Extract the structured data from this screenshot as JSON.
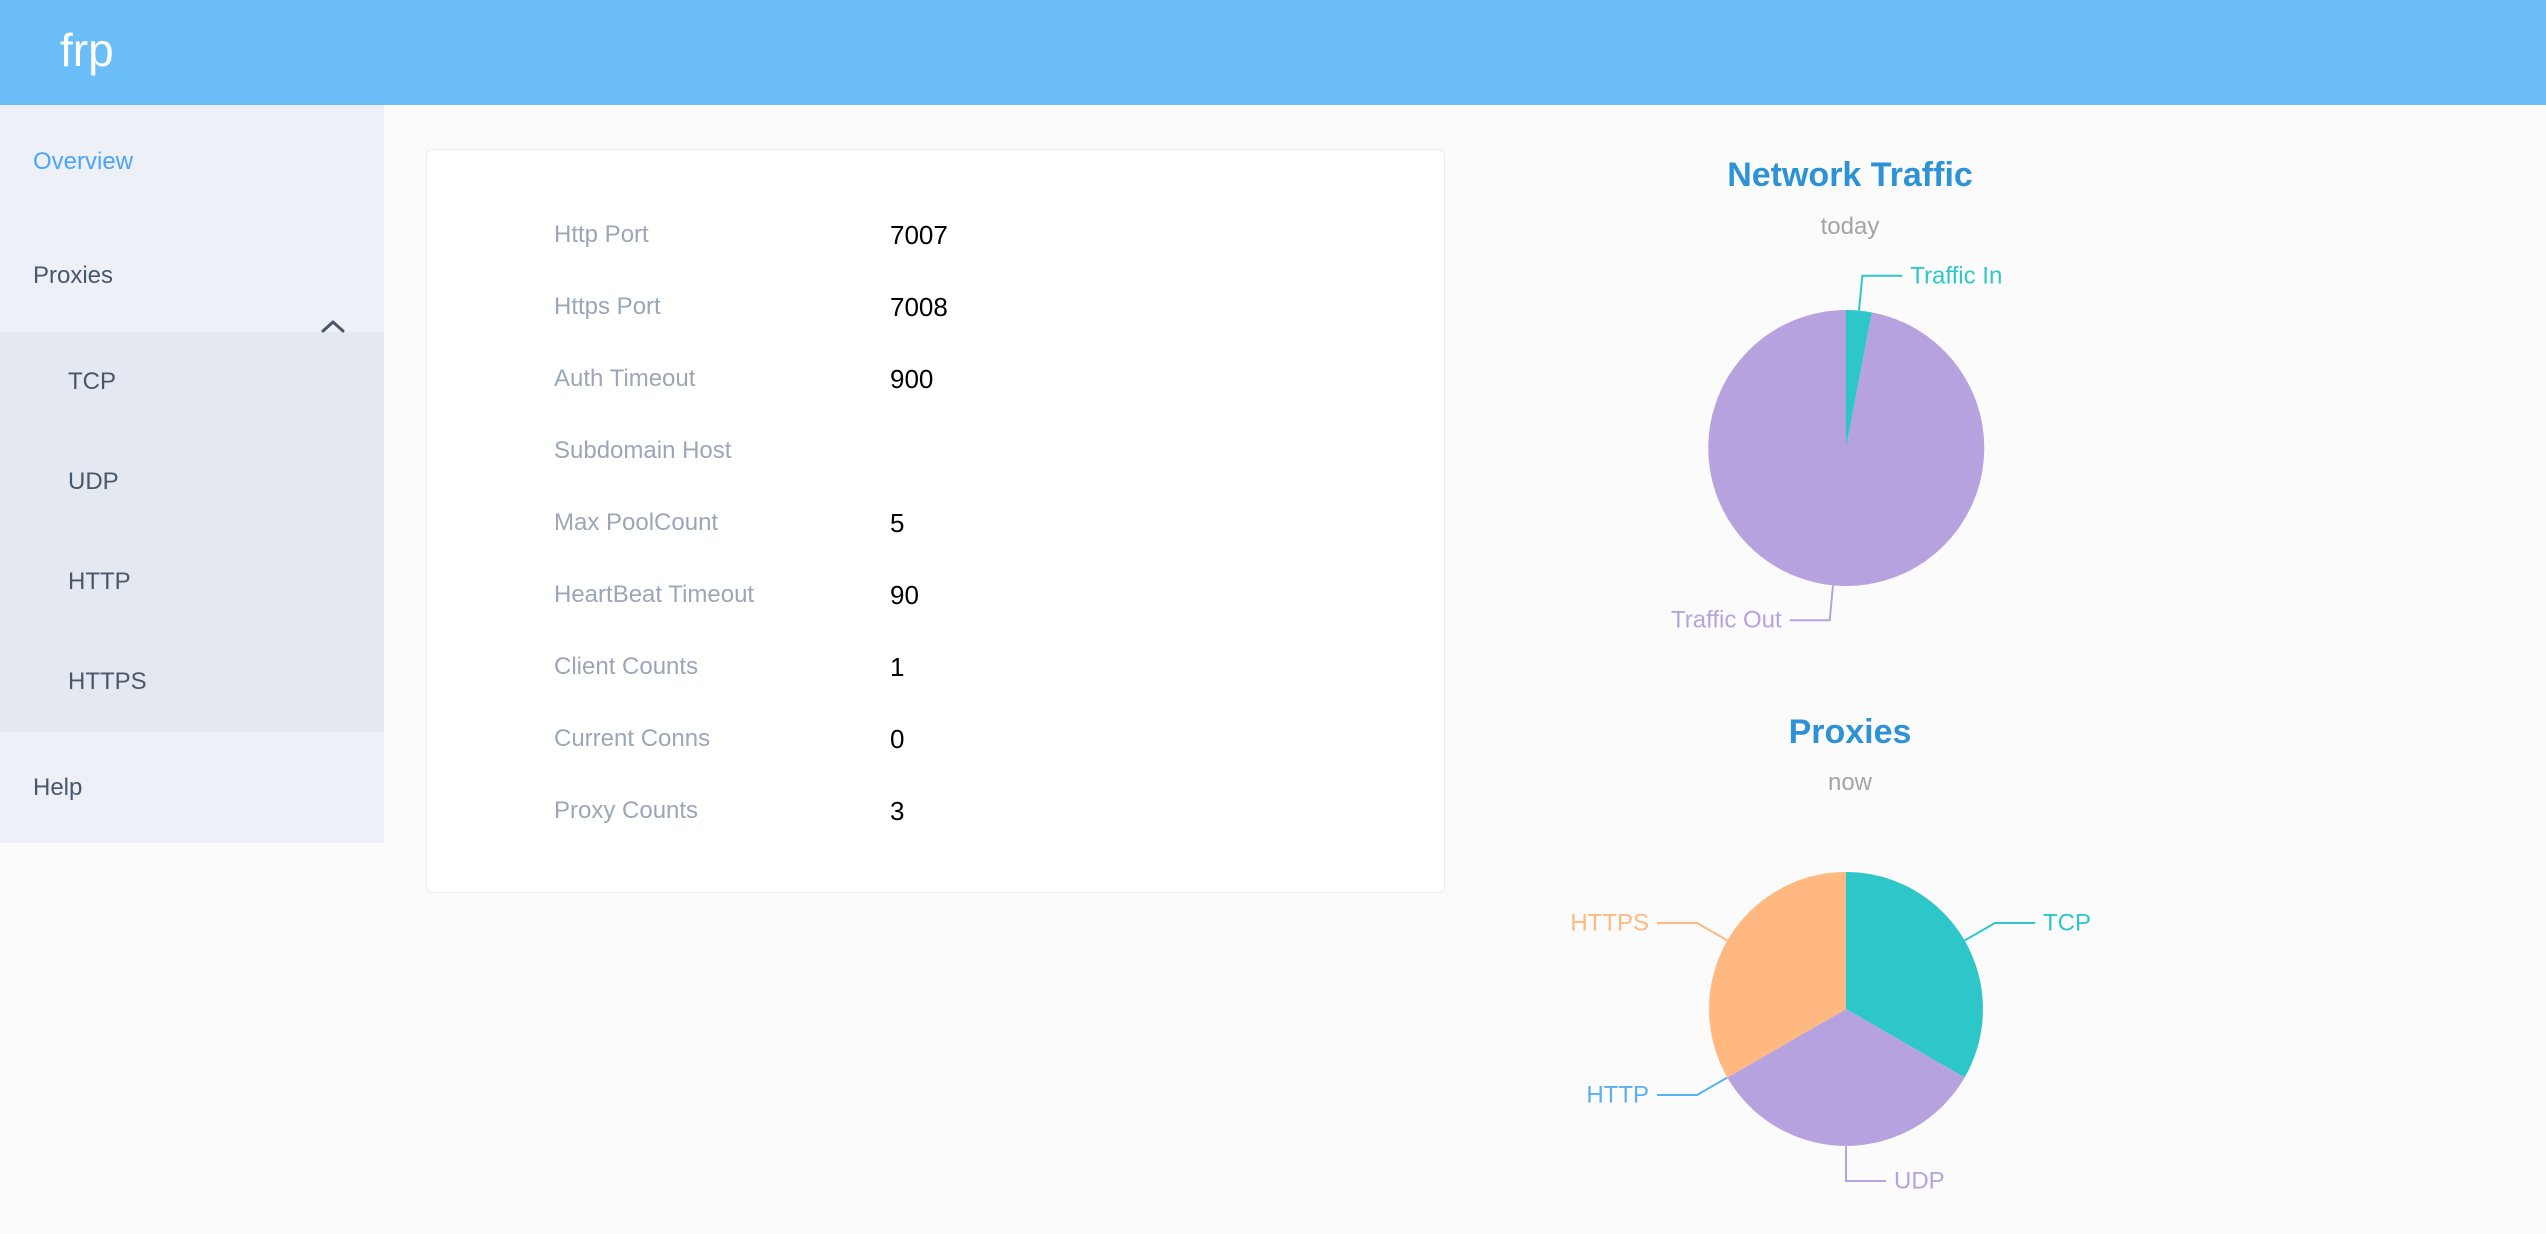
{
  "header": {
    "logo": "frp"
  },
  "sidebar": {
    "items": [
      {
        "label": "Overview",
        "active": true
      },
      {
        "label": "Proxies",
        "expanded": true,
        "children": [
          {
            "label": "TCP"
          },
          {
            "label": "UDP"
          },
          {
            "label": "HTTP"
          },
          {
            "label": "HTTPS"
          }
        ]
      },
      {
        "label": "Help"
      }
    ]
  },
  "config": {
    "rows": [
      {
        "label": "Http Port",
        "value": "7007"
      },
      {
        "label": "Https Port",
        "value": "7008"
      },
      {
        "label": "Auth Timeout",
        "value": "900"
      },
      {
        "label": "Subdomain Host",
        "value": ""
      },
      {
        "label": "Max PoolCount",
        "value": "5"
      },
      {
        "label": "HeartBeat Timeout",
        "value": "90"
      },
      {
        "label": "Client Counts",
        "value": "1"
      },
      {
        "label": "Current Conns",
        "value": "0"
      },
      {
        "label": "Proxy Counts",
        "value": "3"
      }
    ]
  },
  "chart_data": [
    {
      "type": "pie",
      "title": "Network Traffic",
      "subtitle": "today",
      "labels": [
        "Traffic In",
        "Traffic Out"
      ],
      "values": [
        3,
        97
      ],
      "colors": [
        "#2ec7c9",
        "#b6a2de"
      ],
      "labels_position": "outside",
      "legend_position": "none"
    },
    {
      "type": "pie",
      "title": "Proxies",
      "subtitle": "now",
      "labels": [
        "TCP",
        "UDP",
        "HTTP",
        "HTTPS"
      ],
      "values": [
        1,
        1,
        0,
        1
      ],
      "colors": [
        "#2ec7c9",
        "#b6a2de",
        "#5ab1ef",
        "#ffb980"
      ],
      "labels_position": "outside",
      "legend_position": "none"
    }
  ],
  "colors": {
    "header_background": "#6bbdf8",
    "sidebar_background": "#edf1f7",
    "submenu_background": "#e4e8f1",
    "menu_text": "#48576a",
    "active_menu_item": "#4aa4f8",
    "chart_title_blue": "#2e93d6",
    "config_label_gray": "#9ca6b6",
    "teal": "#2ec7c9",
    "purple": "#b6a2de",
    "light_blue": "#5ab1ef",
    "orange": "#ffb980"
  }
}
